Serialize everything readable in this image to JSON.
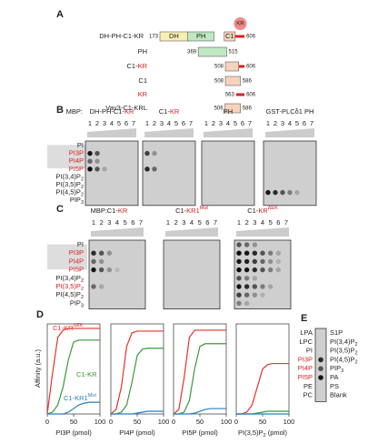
{
  "panel_a": {
    "label": "A",
    "constructs": [
      {
        "name": "DH-PH-C1-KR",
        "start": 173,
        "end": 606,
        "domains": [
          "DH",
          "PH",
          "C1"
        ],
        "badge": "KR",
        "badge_color": "#f08a8a",
        "colors": [
          "#f7f0b5",
          "#bfe8c0",
          "#f7d3bd",
          "#e02020"
        ]
      },
      {
        "name": "PH",
        "start": 369,
        "end": 515,
        "colors": [
          "#bfe8c0"
        ]
      },
      {
        "name": {
          "parts": [
            {
              "text": "C1-"
            },
            {
              "text": "KR",
              "color": "#d62020"
            }
          ]
        },
        "start": 508,
        "end": 606,
        "colors": [
          "#f7d3bd",
          "#e02020"
        ]
      },
      {
        "name": "C1",
        "start": 508,
        "end": 586,
        "colors": [
          "#f7d3bd"
        ]
      },
      {
        "name": {
          "text": "KR",
          "color": "#d62020"
        },
        "start": 563,
        "end": 606,
        "colors": [
          "#e02020"
        ]
      },
      {
        "name": "Vav3-C1-KRL",
        "start": 506,
        "end": 586,
        "colors": [
          "#f7d3bd"
        ]
      }
    ]
  },
  "panel_b": {
    "label": "B",
    "mbp": "MBP:",
    "lanes": [
      1,
      2,
      3,
      4,
      5,
      6,
      7
    ],
    "lipids": [
      "PI",
      {
        "text": "PI3P",
        "color": "#d62020"
      },
      {
        "text": "PI4P",
        "color": "#d62020"
      },
      {
        "text": "PI5P",
        "color": "#d62020"
      },
      {
        "text": "PI(3,4)P",
        "sub": "2"
      },
      {
        "text": "PI(3,5)P",
        "sub": "2"
      },
      {
        "text": "PI(4,5)P",
        "sub": "2"
      },
      {
        "text": "PIP",
        "sub": "3"
      }
    ],
    "blots": [
      {
        "name": {
          "parts": [
            {
              "text": "DH-PH-C1-"
            },
            {
              "text": "KR",
              "color": "#d62020"
            }
          ]
        },
        "spots": [
          [
            1,
            1,
            0.9
          ],
          [
            1,
            2,
            0.6
          ],
          [
            2,
            1,
            0.5
          ],
          [
            2,
            2,
            0.3
          ],
          [
            3,
            1,
            0.95
          ],
          [
            3,
            2,
            0.6
          ],
          [
            3,
            3,
            0.2
          ]
        ]
      },
      {
        "name": {
          "parts": [
            {
              "text": "C1-"
            },
            {
              "text": "KR",
              "color": "#d62020"
            }
          ]
        },
        "spots": [
          [
            1,
            1,
            0.7
          ],
          [
            1,
            2,
            0.3
          ],
          [
            3,
            1,
            0.8
          ],
          [
            3,
            2,
            0.5
          ]
        ]
      },
      {
        "name": "PH",
        "spots": []
      },
      {
        "name": "GST-PLCδ1 PH",
        "spots": [
          [
            6,
            1,
            0.9
          ],
          [
            6,
            2,
            0.8
          ],
          [
            6,
            3,
            0.6
          ],
          [
            6,
            4,
            0.4
          ],
          [
            6,
            5,
            0.2
          ]
        ]
      }
    ]
  },
  "panel_c": {
    "label": "C",
    "mbp": "MBP:",
    "lanes": [
      1,
      2,
      3,
      4,
      5,
      6,
      7
    ],
    "lipids": [
      "PI",
      {
        "text": "PI3P",
        "color": "#d62020"
      },
      {
        "text": "PI4P",
        "color": "#d62020"
      },
      {
        "text": "PI5P",
        "color": "#d62020"
      },
      {
        "text": "PI(3,4)P",
        "sub": "2"
      },
      {
        "text": "PI(3,5)P",
        "sub": "2",
        "color": "#d62020"
      },
      {
        "text": "PI(4,5)P",
        "sub": "2"
      },
      {
        "text": "PIP",
        "sub": "3"
      }
    ],
    "blots": [
      {
        "name": {
          "parts": [
            {
              "text": "C1-"
            },
            {
              "text": "KR",
              "color": "#d62020"
            }
          ]
        },
        "spots": [
          [
            1,
            1,
            0.8
          ],
          [
            1,
            2,
            0.6
          ],
          [
            1,
            3,
            0.3
          ],
          [
            2,
            1,
            0.5
          ],
          [
            2,
            2,
            0.3
          ],
          [
            3,
            1,
            0.9
          ],
          [
            3,
            2,
            0.6
          ],
          [
            3,
            3,
            0.3
          ],
          [
            3,
            4,
            0.1
          ],
          [
            5,
            1,
            0.5
          ],
          [
            5,
            2,
            0.2
          ]
        ]
      },
      {
        "name": {
          "parts": [
            {
              "text": "C1-"
            },
            {
              "text": "KR1",
              "color": "#d62020",
              "sup": "Mut"
            }
          ]
        },
        "spots": []
      },
      {
        "name": {
          "parts": [
            {
              "text": "C1-"
            },
            {
              "text": "KR",
              "color": "#d62020",
              "sup": "ΔEK"
            }
          ]
        },
        "spots": [
          [
            0,
            1,
            0.6
          ],
          [
            0,
            2,
            0.5
          ],
          [
            0,
            3,
            0.3
          ],
          [
            1,
            1,
            0.95
          ],
          [
            1,
            2,
            0.9
          ],
          [
            1,
            3,
            0.8
          ],
          [
            1,
            4,
            0.6
          ],
          [
            1,
            5,
            0.4
          ],
          [
            1,
            6,
            0.2
          ],
          [
            2,
            1,
            0.9
          ],
          [
            2,
            2,
            0.85
          ],
          [
            2,
            3,
            0.7
          ],
          [
            2,
            4,
            0.5
          ],
          [
            2,
            5,
            0.3
          ],
          [
            2,
            6,
            0.15
          ],
          [
            3,
            1,
            0.95
          ],
          [
            3,
            2,
            0.9
          ],
          [
            3,
            3,
            0.8
          ],
          [
            3,
            4,
            0.6
          ],
          [
            3,
            5,
            0.4
          ],
          [
            3,
            6,
            0.2
          ],
          [
            4,
            1,
            0.6
          ],
          [
            4,
            2,
            0.4
          ],
          [
            4,
            3,
            0.2
          ],
          [
            5,
            1,
            0.9
          ],
          [
            5,
            2,
            0.8
          ],
          [
            5,
            3,
            0.6
          ],
          [
            5,
            4,
            0.4
          ],
          [
            5,
            5,
            0.2
          ],
          [
            6,
            1,
            0.7
          ],
          [
            6,
            2,
            0.5
          ],
          [
            6,
            3,
            0.3
          ],
          [
            6,
            4,
            0.15
          ],
          [
            7,
            1,
            0.4
          ],
          [
            7,
            2,
            0.2
          ]
        ]
      }
    ]
  },
  "panel_d": {
    "label": "D",
    "y_label": "Affinity (a.u.)"
  },
  "chart_data": [
    {
      "type": "line",
      "x": [
        0,
        10,
        20,
        30,
        40,
        50,
        60,
        70,
        80,
        90,
        100
      ],
      "xlim": [
        0,
        100
      ],
      "xticks": [
        0,
        50,
        100
      ],
      "ylim": [
        0,
        1
      ],
      "x_label": "PI3P (pmol)",
      "series": [
        {
          "name": "C1-KR",
          "name_sup": "ΔEK",
          "color": "#e8322c",
          "values": [
            0,
            0.45,
            0.85,
            0.93,
            0.95,
            0.95,
            0.95,
            0.95,
            0.95,
            0.95,
            0.95
          ]
        },
        {
          "name": "C1-KR",
          "color": "#3a9a3a",
          "values": [
            0,
            0.02,
            0.1,
            0.3,
            0.6,
            0.8,
            0.82,
            0.82,
            0.82,
            0.82,
            0.82
          ]
        },
        {
          "name": "C1-KR1",
          "name_sup": "Mut",
          "color": "#2a7fc0",
          "values": [
            0,
            0,
            0,
            0,
            0.02,
            0.06,
            0.1,
            0.12,
            0.13,
            0.13,
            0.13
          ]
        }
      ]
    },
    {
      "type": "line",
      "x": [
        0,
        10,
        20,
        30,
        40,
        50,
        60,
        70,
        80,
        90,
        100
      ],
      "xlim": [
        0,
        100
      ],
      "xticks": [
        0,
        50,
        100
      ],
      "ylim": [
        0,
        1
      ],
      "x_label": "PI4P (pmol)",
      "series": [
        {
          "color": "#e8322c",
          "values": [
            0,
            0.05,
            0.3,
            0.75,
            0.9,
            0.92,
            0.92,
            0.92,
            0.92,
            0.92,
            0.92
          ]
        },
        {
          "color": "#3a9a3a",
          "values": [
            0,
            0,
            0.02,
            0.1,
            0.35,
            0.65,
            0.72,
            0.73,
            0.73,
            0.73,
            0.73
          ]
        },
        {
          "color": "#2a7fc0",
          "values": [
            0,
            0,
            0,
            0,
            0,
            0.01,
            0.02,
            0.03,
            0.03,
            0.03,
            0.03
          ]
        }
      ]
    },
    {
      "type": "line",
      "x": [
        0,
        10,
        20,
        30,
        40,
        50,
        60,
        70,
        80,
        90,
        100
      ],
      "xlim": [
        0,
        100
      ],
      "xticks": [
        0,
        50,
        100
      ],
      "ylim": [
        0,
        1
      ],
      "x_label": "PI5P (pmol)",
      "series": [
        {
          "color": "#e8322c",
          "values": [
            0,
            0.05,
            0.4,
            0.85,
            0.93,
            0.93,
            0.93,
            0.93,
            0.93,
            0.93,
            0.93
          ]
        },
        {
          "color": "#3a9a3a",
          "values": [
            0,
            0,
            0.02,
            0.15,
            0.5,
            0.75,
            0.78,
            0.78,
            0.78,
            0.78,
            0.78
          ]
        },
        {
          "color": "#2a7fc0",
          "values": [
            0,
            0,
            0,
            0,
            0.01,
            0.03,
            0.05,
            0.06,
            0.06,
            0.06,
            0.06
          ]
        }
      ]
    },
    {
      "type": "line",
      "x": [
        0,
        10,
        20,
        30,
        40,
        50,
        60,
        70,
        80,
        90,
        100
      ],
      "xlim": [
        0,
        100
      ],
      "xticks": [
        0,
        50,
        100
      ],
      "ylim": [
        0,
        1
      ],
      "x_label": {
        "text": "PI(3,5)P",
        "sub": "2",
        "tail": " (pmol)"
      },
      "series": [
        {
          "color": "#e8322c",
          "values": [
            0,
            0,
            0.02,
            0.1,
            0.3,
            0.5,
            0.55,
            0.56,
            0.56,
            0.56,
            0.56
          ]
        },
        {
          "color": "#3a9a3a",
          "values": [
            0,
            0,
            0,
            0,
            0.01,
            0.02,
            0.03,
            0.03,
            0.03,
            0.03,
            0.03
          ]
        },
        {
          "color": "#2a7fc0",
          "values": [
            0,
            0,
            0,
            0,
            0,
            0,
            0,
            0,
            0,
            0,
            0
          ]
        }
      ]
    }
  ],
  "panel_e": {
    "label": "E",
    "left": [
      "LPA",
      "LPC",
      "PI",
      {
        "text": "PI3P",
        "color": "#d62020"
      },
      {
        "text": "PI4P",
        "color": "#d62020"
      },
      {
        "text": "PI5P",
        "color": "#d62020"
      },
      "PE",
      "PC"
    ],
    "right": [
      "S1P",
      {
        "text": "PI(3,4)P",
        "sub": "2"
      },
      {
        "text": "PI(3,5)P",
        "sub": "2"
      },
      {
        "text": "PI(4,5)P",
        "sub": "2"
      },
      {
        "text": "PIP",
        "sub": "3"
      },
      "PA",
      "PS",
      "Blank"
    ],
    "spots": [
      [
        3,
        0.8
      ],
      [
        4,
        0.6
      ],
      [
        5,
        0.9
      ]
    ]
  }
}
